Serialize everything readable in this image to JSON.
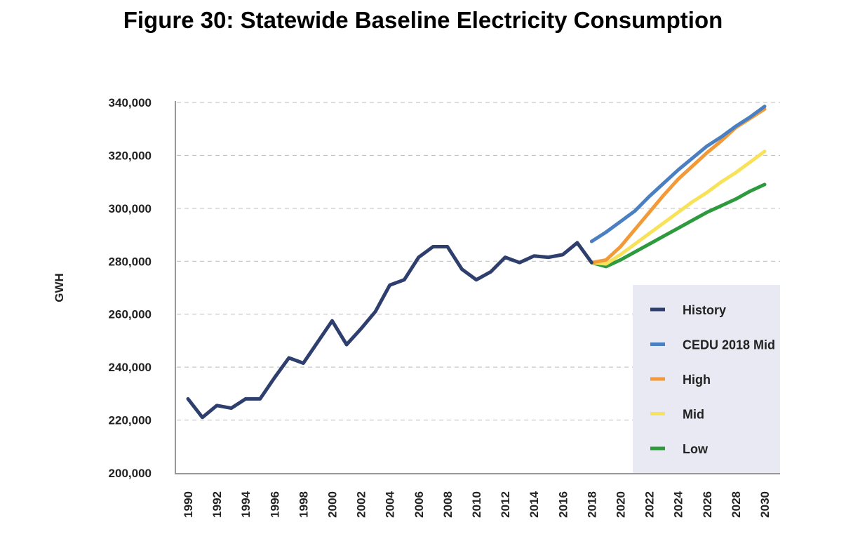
{
  "chart_data": {
    "type": "line",
    "title": "Figure 30: Statewide Baseline Electricity Consumption",
    "xlabel": "",
    "ylabel": "GWH",
    "ylim": [
      200000,
      340000
    ],
    "xlim": [
      1990,
      2030
    ],
    "yticks": [
      "200,000",
      "220,000",
      "240,000",
      "260,000",
      "280,000",
      "300,000",
      "320,000",
      "340,000"
    ],
    "ytick_values": [
      200000,
      220000,
      240000,
      260000,
      280000,
      300000,
      320000,
      340000
    ],
    "xticks": [
      1990,
      1992,
      1994,
      1996,
      1998,
      2000,
      2002,
      2004,
      2006,
      2008,
      2010,
      2012,
      2014,
      2016,
      2018,
      2020,
      2022,
      2024,
      2026,
      2028,
      2030
    ],
    "grid": "horizontal dashed",
    "legend_position": "bottom-right",
    "series": [
      {
        "name": "History",
        "color": "#2e3f6e",
        "x": [
          1990,
          1991,
          1992,
          1993,
          1994,
          1995,
          1996,
          1997,
          1998,
          1999,
          2000,
          2001,
          2002,
          2003,
          2004,
          2005,
          2006,
          2007,
          2008,
          2009,
          2010,
          2011,
          2012,
          2013,
          2014,
          2015,
          2016,
          2017,
          2018
        ],
        "values": [
          228000,
          221000,
          225500,
          224500,
          228000,
          228000,
          236000,
          243500,
          241500,
          249500,
          257500,
          248500,
          254500,
          261000,
          271000,
          273000,
          281500,
          285500,
          285500,
          277000,
          273000,
          276000,
          281500,
          279500,
          282000,
          281500,
          282500,
          287000,
          279500
        ]
      },
      {
        "name": "CEDU 2018 Mid",
        "color": "#4a7fc1",
        "x": [
          2018,
          2019,
          2020,
          2021,
          2022,
          2023,
          2024,
          2025,
          2026,
          2027,
          2028,
          2029,
          2030
        ],
        "values": [
          287500,
          291000,
          295000,
          299000,
          304500,
          309500,
          314500,
          319000,
          323500,
          327000,
          331000,
          334500,
          338500
        ]
      },
      {
        "name": "High",
        "color": "#f29a38",
        "x": [
          2018,
          2019,
          2020,
          2021,
          2022,
          2023,
          2024,
          2025,
          2026,
          2027,
          2028,
          2029,
          2030
        ],
        "values": [
          279500,
          280500,
          285500,
          292000,
          298500,
          305000,
          311000,
          316000,
          321000,
          325500,
          330500,
          334000,
          337500
        ]
      },
      {
        "name": "Mid",
        "color": "#f7e25a",
        "x": [
          2018,
          2019,
          2020,
          2021,
          2022,
          2023,
          2024,
          2025,
          2026,
          2027,
          2028,
          2029,
          2030
        ],
        "values": [
          279500,
          279000,
          282500,
          286500,
          290500,
          294500,
          298500,
          302500,
          306000,
          310000,
          313500,
          317500,
          321500
        ]
      },
      {
        "name": "Low",
        "color": "#2e9a3e",
        "x": [
          2018,
          2019,
          2020,
          2021,
          2022,
          2023,
          2024,
          2025,
          2026,
          2027,
          2028,
          2029,
          2030
        ],
        "values": [
          279500,
          278000,
          280500,
          283500,
          286500,
          289500,
          292500,
          295500,
          298500,
          301000,
          303500,
          306500,
          309000
        ]
      }
    ]
  }
}
